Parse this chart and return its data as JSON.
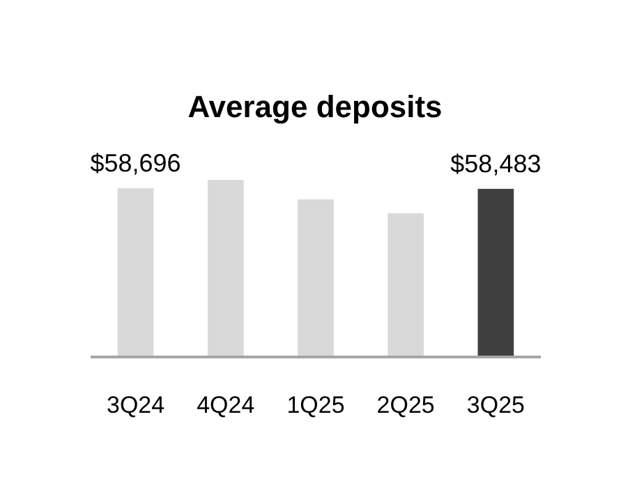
{
  "chart_data": {
    "type": "bar",
    "title": "Average deposits",
    "categories": [
      "3Q24",
      "4Q24",
      "1Q25",
      "2Q25",
      "3Q25"
    ],
    "values": [
      58696,
      61600,
      54800,
      50000,
      58483
    ],
    "value_labels": [
      "$58,696",
      null,
      null,
      null,
      "$58,483"
    ],
    "colors": [
      "#d9d9d9",
      "#d9d9d9",
      "#d9d9d9",
      "#d9d9d9",
      "#404040"
    ]
  }
}
